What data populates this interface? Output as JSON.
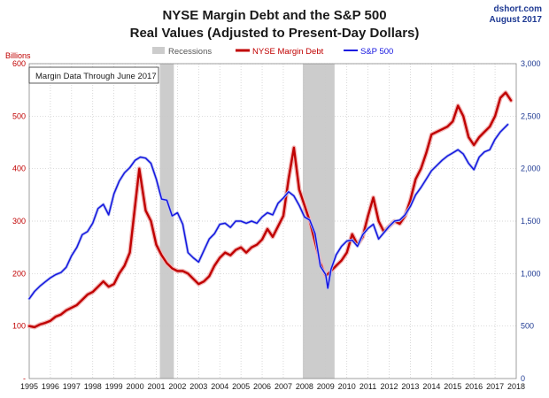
{
  "chart_data": {
    "type": "line",
    "title": "NYSE Margin Debt and the S&P 500",
    "subtitle": "Real Values (Adjusted to Present-Day Dollars)",
    "source_line1": "dshort.com",
    "source_line2": "August 2017",
    "annotation": "Margin Data Through June 2017",
    "ylabel_left": "Billions",
    "ylim_left": [
      0,
      600
    ],
    "yticks_left": [
      0,
      100,
      200,
      300,
      400,
      500,
      600
    ],
    "ytick_labels_left": [
      "-",
      "100",
      "200",
      "300",
      "400",
      "500",
      "600"
    ],
    "ylim_right": [
      0,
      3000
    ],
    "yticks_right": [
      0,
      500,
      1000,
      1500,
      2000,
      2500,
      3000
    ],
    "ytick_labels_right": [
      "0",
      "500",
      "1,000",
      "1,500",
      "2,000",
      "2,500",
      "3,000"
    ],
    "xlim": [
      1995,
      2018
    ],
    "xticks": [
      1995,
      1996,
      1997,
      1998,
      1999,
      2000,
      2001,
      2002,
      2003,
      2004,
      2005,
      2006,
      2007,
      2008,
      2009,
      2010,
      2011,
      2012,
      2013,
      2014,
      2015,
      2016,
      2017,
      2018
    ],
    "grid": true,
    "legend_position": "top",
    "recessions": {
      "name": "Recessions",
      "color": "#cccccc",
      "periods": [
        [
          2001.17,
          2001.83
        ],
        [
          2007.92,
          2009.42
        ]
      ]
    },
    "series": [
      {
        "name": "NYSE Margin Debt",
        "axis": "left",
        "color": "#c00000",
        "points": [
          [
            1995.0,
            100
          ],
          [
            1995.25,
            98
          ],
          [
            1995.5,
            103
          ],
          [
            1995.75,
            106
          ],
          [
            1996.0,
            110
          ],
          [
            1996.25,
            118
          ],
          [
            1996.5,
            122
          ],
          [
            1996.75,
            130
          ],
          [
            1997.0,
            135
          ],
          [
            1997.25,
            140
          ],
          [
            1997.5,
            150
          ],
          [
            1997.75,
            160
          ],
          [
            1998.0,
            165
          ],
          [
            1998.25,
            175
          ],
          [
            1998.5,
            185
          ],
          [
            1998.75,
            175
          ],
          [
            1999.0,
            180
          ],
          [
            1999.25,
            200
          ],
          [
            1999.5,
            215
          ],
          [
            1999.75,
            240
          ],
          [
            2000.0,
            330
          ],
          [
            2000.2,
            400
          ],
          [
            2000.5,
            320
          ],
          [
            2000.75,
            300
          ],
          [
            2001.0,
            255
          ],
          [
            2001.25,
            235
          ],
          [
            2001.5,
            220
          ],
          [
            2001.75,
            210
          ],
          [
            2002.0,
            205
          ],
          [
            2002.25,
            205
          ],
          [
            2002.5,
            200
          ],
          [
            2002.75,
            190
          ],
          [
            2003.0,
            180
          ],
          [
            2003.25,
            185
          ],
          [
            2003.5,
            195
          ],
          [
            2003.75,
            215
          ],
          [
            2004.0,
            230
          ],
          [
            2004.25,
            240
          ],
          [
            2004.5,
            235
          ],
          [
            2004.75,
            245
          ],
          [
            2005.0,
            250
          ],
          [
            2005.25,
            240
          ],
          [
            2005.5,
            250
          ],
          [
            2005.75,
            255
          ],
          [
            2006.0,
            265
          ],
          [
            2006.25,
            285
          ],
          [
            2006.5,
            270
          ],
          [
            2006.75,
            290
          ],
          [
            2007.0,
            310
          ],
          [
            2007.25,
            380
          ],
          [
            2007.5,
            440
          ],
          [
            2007.75,
            360
          ],
          [
            2008.0,
            330
          ],
          [
            2008.25,
            300
          ],
          [
            2008.5,
            260
          ],
          [
            2008.75,
            220
          ],
          [
            2009.0,
            195
          ],
          [
            2009.25,
            205
          ],
          [
            2009.5,
            215
          ],
          [
            2009.75,
            225
          ],
          [
            2010.0,
            240
          ],
          [
            2010.25,
            275
          ],
          [
            2010.5,
            255
          ],
          [
            2010.75,
            270
          ],
          [
            2011.0,
            310
          ],
          [
            2011.25,
            345
          ],
          [
            2011.5,
            300
          ],
          [
            2011.75,
            280
          ],
          [
            2012.0,
            290
          ],
          [
            2012.25,
            300
          ],
          [
            2012.5,
            295
          ],
          [
            2012.75,
            310
          ],
          [
            2013.0,
            340
          ],
          [
            2013.25,
            380
          ],
          [
            2013.5,
            400
          ],
          [
            2013.75,
            430
          ],
          [
            2014.0,
            465
          ],
          [
            2014.25,
            470
          ],
          [
            2014.5,
            475
          ],
          [
            2014.75,
            480
          ],
          [
            2015.0,
            490
          ],
          [
            2015.25,
            520
          ],
          [
            2015.5,
            500
          ],
          [
            2015.75,
            460
          ],
          [
            2016.0,
            445
          ],
          [
            2016.25,
            460
          ],
          [
            2016.5,
            470
          ],
          [
            2016.75,
            480
          ],
          [
            2017.0,
            500
          ],
          [
            2017.25,
            535
          ],
          [
            2017.5,
            545
          ],
          [
            2017.75,
            530
          ]
        ]
      },
      {
        "name": "S&P 500",
        "axis": "right",
        "color": "#1515e0",
        "points": [
          [
            1995.0,
            760
          ],
          [
            1995.25,
            830
          ],
          [
            1995.5,
            880
          ],
          [
            1995.75,
            920
          ],
          [
            1996.0,
            960
          ],
          [
            1996.25,
            990
          ],
          [
            1996.5,
            1010
          ],
          [
            1996.75,
            1060
          ],
          [
            1997.0,
            1170
          ],
          [
            1997.25,
            1250
          ],
          [
            1997.5,
            1370
          ],
          [
            1997.75,
            1400
          ],
          [
            1998.0,
            1480
          ],
          [
            1998.25,
            1620
          ],
          [
            1998.5,
            1660
          ],
          [
            1998.75,
            1560
          ],
          [
            1999.0,
            1760
          ],
          [
            1999.25,
            1880
          ],
          [
            1999.5,
            1960
          ],
          [
            1999.75,
            2010
          ],
          [
            2000.0,
            2080
          ],
          [
            2000.25,
            2110
          ],
          [
            2000.5,
            2100
          ],
          [
            2000.75,
            2050
          ],
          [
            2001.0,
            1900
          ],
          [
            2001.25,
            1710
          ],
          [
            2001.5,
            1700
          ],
          [
            2001.75,
            1550
          ],
          [
            2002.0,
            1580
          ],
          [
            2002.25,
            1470
          ],
          [
            2002.5,
            1200
          ],
          [
            2002.75,
            1150
          ],
          [
            2003.0,
            1110
          ],
          [
            2003.25,
            1220
          ],
          [
            2003.5,
            1330
          ],
          [
            2003.75,
            1380
          ],
          [
            2004.0,
            1470
          ],
          [
            2004.25,
            1480
          ],
          [
            2004.5,
            1440
          ],
          [
            2004.75,
            1500
          ],
          [
            2005.0,
            1500
          ],
          [
            2005.25,
            1480
          ],
          [
            2005.5,
            1500
          ],
          [
            2005.75,
            1480
          ],
          [
            2006.0,
            1540
          ],
          [
            2006.25,
            1580
          ],
          [
            2006.5,
            1560
          ],
          [
            2006.75,
            1670
          ],
          [
            2007.0,
            1720
          ],
          [
            2007.25,
            1780
          ],
          [
            2007.5,
            1740
          ],
          [
            2007.75,
            1650
          ],
          [
            2008.0,
            1540
          ],
          [
            2008.25,
            1510
          ],
          [
            2008.5,
            1380
          ],
          [
            2008.75,
            1070
          ],
          [
            2009.0,
            990
          ],
          [
            2009.1,
            860
          ],
          [
            2009.25,
            1040
          ],
          [
            2009.5,
            1180
          ],
          [
            2009.75,
            1260
          ],
          [
            2010.0,
            1310
          ],
          [
            2010.25,
            1320
          ],
          [
            2010.5,
            1260
          ],
          [
            2010.75,
            1370
          ],
          [
            2011.0,
            1430
          ],
          [
            2011.25,
            1470
          ],
          [
            2011.5,
            1330
          ],
          [
            2011.75,
            1390
          ],
          [
            2012.0,
            1450
          ],
          [
            2012.25,
            1500
          ],
          [
            2012.5,
            1510
          ],
          [
            2012.75,
            1560
          ],
          [
            2013.0,
            1640
          ],
          [
            2013.25,
            1750
          ],
          [
            2013.5,
            1820
          ],
          [
            2013.75,
            1900
          ],
          [
            2014.0,
            1980
          ],
          [
            2014.25,
            2030
          ],
          [
            2014.5,
            2080
          ],
          [
            2014.75,
            2120
          ],
          [
            2015.0,
            2150
          ],
          [
            2015.25,
            2180
          ],
          [
            2015.5,
            2140
          ],
          [
            2015.75,
            2050
          ],
          [
            2016.0,
            1990
          ],
          [
            2016.25,
            2110
          ],
          [
            2016.5,
            2160
          ],
          [
            2016.75,
            2180
          ],
          [
            2017.0,
            2280
          ],
          [
            2017.25,
            2350
          ],
          [
            2017.5,
            2400
          ],
          [
            2017.6,
            2420
          ]
        ]
      }
    ]
  }
}
